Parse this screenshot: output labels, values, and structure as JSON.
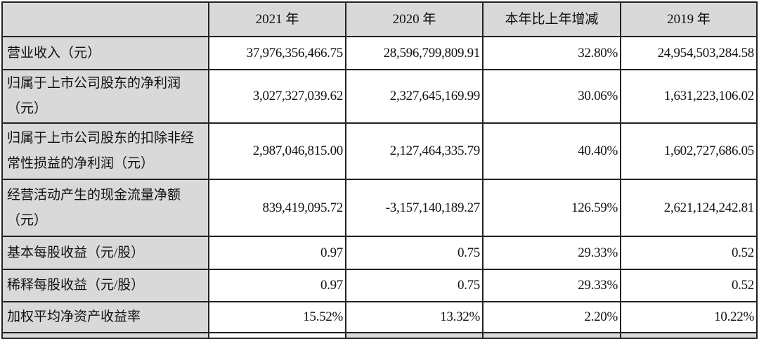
{
  "headers": [
    "",
    "2021 年",
    "2020 年",
    "本年比上年增减",
    "2019 年"
  ],
  "rows": [
    {
      "label": "营业收入（元）",
      "values": [
        "37,976,356,466.75",
        "28,596,799,809.91",
        "32.80%",
        "24,954,503,284.58"
      ]
    },
    {
      "label": "归属于上市公司股东的净利润（元）",
      "values": [
        "3,027,327,039.62",
        "2,327,645,169.99",
        "30.06%",
        "1,631,223,106.02"
      ]
    },
    {
      "label": "归属于上市公司股东的扣除非经常性损益的净利润（元）",
      "values": [
        "2,987,046,815.00",
        "2,127,464,335.79",
        "40.40%",
        "1,602,727,686.05"
      ]
    },
    {
      "label": "经营活动产生的现金流量净额（元）",
      "values": [
        "839,419,095.72",
        "-3,157,140,189.27",
        "126.59%",
        "2,621,124,242.81"
      ]
    },
    {
      "label": "基本每股收益（元/股）",
      "values": [
        "0.97",
        "0.75",
        "29.33%",
        "0.52"
      ]
    },
    {
      "label": "稀释每股收益（元/股）",
      "values": [
        "0.97",
        "0.75",
        "29.33%",
        "0.52"
      ]
    },
    {
      "label": "加权平均净资产收益率",
      "values": [
        "15.52%",
        "13.32%",
        "2.20%",
        "10.22%"
      ]
    }
  ]
}
